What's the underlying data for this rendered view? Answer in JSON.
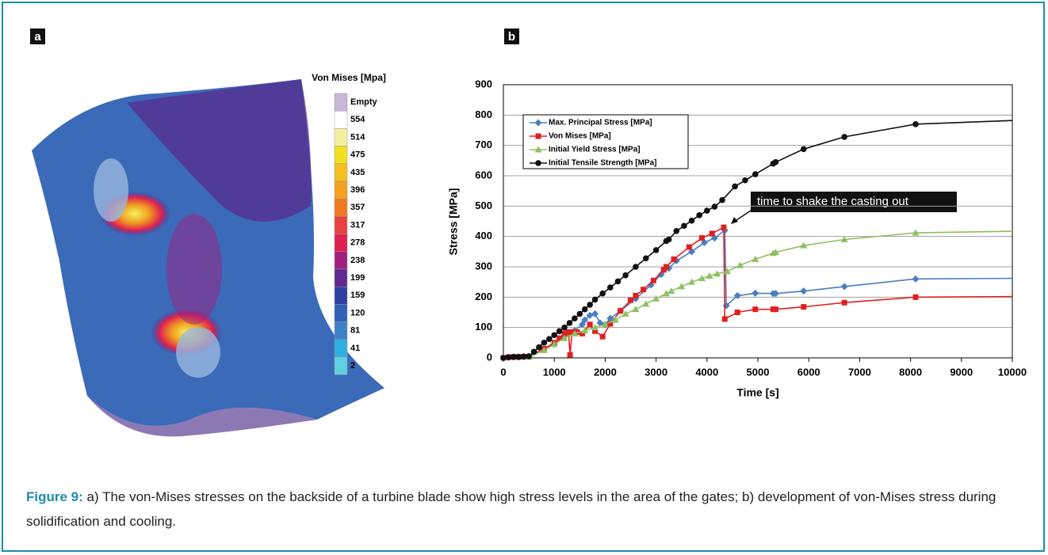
{
  "panels": {
    "a": "a",
    "b": "b"
  },
  "colorbar": {
    "title": "Von Mises [Mpa]",
    "labels": [
      "Empty",
      "554",
      "514",
      "475",
      "435",
      "396",
      "357",
      "317",
      "278",
      "238",
      "199",
      "159",
      "120",
      "81",
      "41",
      "2"
    ],
    "colors": [
      "#c8b8d8",
      "#ffffff",
      "#f4f0a0",
      "#f0e020",
      "#f4c020",
      "#f4a020",
      "#f07820",
      "#e84040",
      "#e02050",
      "#a02080",
      "#602890",
      "#3040a0",
      "#3060b8",
      "#3c80c8",
      "#30b0e0",
      "#60d0e0"
    ]
  },
  "chart_data": {
    "type": "line",
    "xlabel": "Time [s]",
    "ylabel": "Stress [MPa]",
    "xlim": [
      0,
      10000
    ],
    "ylim": [
      0,
      900
    ],
    "xticks": [
      0,
      1000,
      2000,
      3000,
      4000,
      5000,
      6000,
      7000,
      8000,
      9000,
      10000
    ],
    "yticks": [
      0,
      100,
      200,
      300,
      400,
      500,
      600,
      700,
      800,
      900
    ],
    "grid": true,
    "annotation": "time to shake the casting out",
    "series": [
      {
        "name": "Max. Principal Stress [MPa]",
        "color": "#4a7ebf",
        "marker": "diamond",
        "x": [
          0,
          100,
          200,
          300,
          400,
          500,
          1000,
          1200,
          1300,
          1400,
          1550,
          1600,
          1700,
          1800,
          1900,
          2000,
          2100,
          2300,
          2600,
          2900,
          3100,
          3250,
          3400,
          3700,
          3950,
          4150,
          4350,
          4380,
          4600,
          4950,
          5300,
          5350,
          5900,
          6700,
          8100,
          10000
        ],
        "values": [
          0,
          2,
          3,
          3,
          4,
          5,
          45,
          70,
          80,
          90,
          110,
          125,
          140,
          145,
          115,
          110,
          130,
          155,
          195,
          240,
          275,
          295,
          320,
          350,
          380,
          395,
          420,
          172,
          205,
          213,
          212,
          212,
          220,
          235,
          260,
          262
        ]
      },
      {
        "name": "Von Mises [MPa]",
        "color": "#e02020",
        "marker": "square",
        "x": [
          0,
          100,
          200,
          300,
          400,
          500,
          800,
          1000,
          1100,
          1200,
          1280,
          1310,
          1350,
          1450,
          1550,
          1700,
          1800,
          1950,
          2100,
          2300,
          2500,
          2600,
          2750,
          2950,
          3150,
          3200,
          3350,
          3650,
          3900,
          4100,
          4330,
          4350,
          4600,
          4950,
          5300,
          5350,
          5900,
          6700,
          8100,
          10000
        ],
        "values": [
          0,
          2,
          3,
          3,
          4,
          4,
          30,
          50,
          65,
          80,
          85,
          10,
          85,
          85,
          80,
          110,
          88,
          70,
          112,
          155,
          190,
          205,
          225,
          255,
          290,
          300,
          325,
          365,
          395,
          410,
          430,
          128,
          150,
          160,
          160,
          160,
          168,
          182,
          200,
          202
        ]
      },
      {
        "name": "Initial Yield Stress [MPa]",
        "color": "#8dc060",
        "marker": "triangle",
        "x": [
          0,
          500,
          800,
          1000,
          1200,
          1400,
          1600,
          1800,
          2000,
          2200,
          2400,
          2600,
          2800,
          3000,
          3200,
          3300,
          3500,
          3700,
          3900,
          4050,
          4200,
          4400,
          4650,
          4950,
          5300,
          5350,
          5900,
          6700,
          8100,
          10000
        ],
        "values": [
          0,
          3,
          25,
          45,
          65,
          80,
          90,
          100,
          110,
          125,
          145,
          160,
          178,
          195,
          212,
          220,
          235,
          250,
          262,
          270,
          277,
          285,
          305,
          325,
          345,
          348,
          370,
          390,
          412,
          417
        ]
      },
      {
        "name": "Initial Tensile Strength [MPa]",
        "color": "#111111",
        "marker": "circle",
        "x": [
          0,
          100,
          200,
          300,
          400,
          500,
          600,
          700,
          800,
          900,
          1000,
          1100,
          1200,
          1300,
          1400,
          1500,
          1600,
          1700,
          1800,
          1950,
          2100,
          2250,
          2400,
          2600,
          2800,
          3000,
          3200,
          3250,
          3400,
          3550,
          3700,
          3850,
          4000,
          4150,
          4300,
          4550,
          4750,
          4950,
          5300,
          5350,
          5900,
          6700,
          8100,
          10000
        ],
        "values": [
          0,
          2,
          3,
          3,
          4,
          5,
          20,
          35,
          50,
          62,
          75,
          88,
          100,
          115,
          130,
          145,
          160,
          175,
          192,
          212,
          232,
          252,
          272,
          300,
          328,
          355,
          385,
          390,
          418,
          435,
          452,
          470,
          485,
          498,
          520,
          565,
          585,
          605,
          640,
          645,
          688,
          728,
          770,
          782
        ]
      }
    ]
  },
  "caption": {
    "label": "Figure 9:",
    "text": "a) The von-Mises stresses on the backside of a turbine blade show high stress levels in the area of the gates; b) development of von-Mises stress during solidification and cooling."
  }
}
